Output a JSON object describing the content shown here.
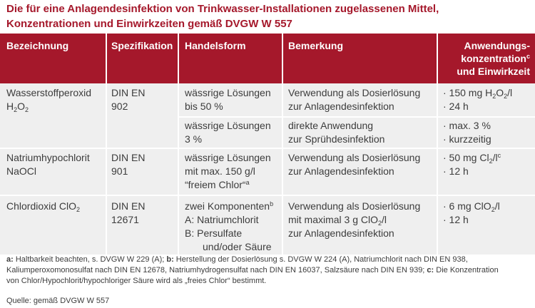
{
  "title": {
    "line1": "Die für eine Anlagendesinfektion von Trinkwasser-Installationen zugelassenen Mittel,",
    "line2": "Konzentrationen und Einwirkzeiten gemäß DVGW W 557"
  },
  "header": {
    "bezeichnung": "Bezeichnung",
    "spezifikation": "Spezifikation",
    "handelsform": "Handelsform",
    "bemerkung": "Bemerkung",
    "anwendung_1": "Anwendungs-",
    "anwendung_2a": "konzentration",
    "anwendung_2sup": "c",
    "anwendung_3": "und Einwirkzeit"
  },
  "rows": {
    "r1": {
      "bez_1": "Wasserstoffperoxid",
      "bez_2a": "H",
      "bez_2s1": "2",
      "bez_2b": "O",
      "bez_2s2": "2",
      "spez_1": "DIN EN",
      "spez_2": "902",
      "hf_1": "wässrige Lösungen",
      "hf_2": "bis 50 %",
      "bem_1": "Verwendung als Dosierlösung",
      "bem_2": "zur Anlagendesinfektion",
      "anw_1a": "· 150 mg H",
      "anw_1s1": "2",
      "anw_1b": "O",
      "anw_1s2": "2",
      "anw_1c": "/l",
      "anw_2": "· 24 h"
    },
    "r1b": {
      "hf_1": "wässrige Lösungen",
      "hf_2": "3 %",
      "bem_1": "direkte Anwendung",
      "bem_2": "zur Sprühdesinfektion",
      "anw_1": "· max. 3 %",
      "anw_2": "· kurzzeitig"
    },
    "r2": {
      "bez_1": "Natriumhypochlorit",
      "bez_2": "NaOCl",
      "spez_1": "DIN EN",
      "spez_2": "901",
      "hf_1": "wässrige Lösungen",
      "hf_2": "mit max. 150 g/l",
      "hf_3a": "“freiem Chlor“",
      "hf_3sup": "a",
      "bem_1": "Verwendung als Dosierlösung",
      "bem_2": "zur Anlagendesinfektion",
      "anw_1a": "· 50 mg Cl",
      "anw_1s": "2",
      "anw_1b": "/l",
      "anw_1sup": "c",
      "anw_2": "· 12 h"
    },
    "r3": {
      "bez_1a": "Chlordioxid ClO",
      "bez_1s": "2",
      "spez_1": "DIN EN",
      "spez_2": "12671",
      "hf_1a": "zwei Komponenten",
      "hf_1sup": "b",
      "hf_2": "A: Natriumchlorit",
      "hf_3": "B: Persulfate",
      "hf_4": "und/oder Säure",
      "bem_1": "Verwendung als Dosierlösung",
      "bem_2a": "mit maximal 3 g ClO",
      "bem_2s": "2",
      "bem_2b": "/l",
      "bem_3": "zur Anlagendesinfektion",
      "anw_1a": "· 6 mg ClO",
      "anw_1s": "2",
      "anw_1b": "/l",
      "anw_2": "· 12 h"
    }
  },
  "footnotes": {
    "a_key": "a:",
    "a_text": " Haltbarkeit beachten, s. DVGW W 229 (A); ",
    "b_key": "b:",
    "b_text": " Herstellung der Dosierlösung s. DVGW W 224 (A), Natriumchlorit nach DIN EN 938,",
    "line2": "Kaliumperoxomonosulfat nach DIN EN 12678, Natriumhydrogensulfat nach DIN EN 16037, Salzsäure nach DIN EN 939; ",
    "c_key": "c:",
    "c_text": " Die Konzentration",
    "line3": "von Chlor/Hypochlorit/hypochloriger Säure wird als „freies Chlor“ bestimmt."
  },
  "source": "Quelle: gemäß DVGW W 557",
  "colors": {
    "accent": "#a5182b",
    "table_bg": "#efefef",
    "text": "#3c3c3c"
  }
}
